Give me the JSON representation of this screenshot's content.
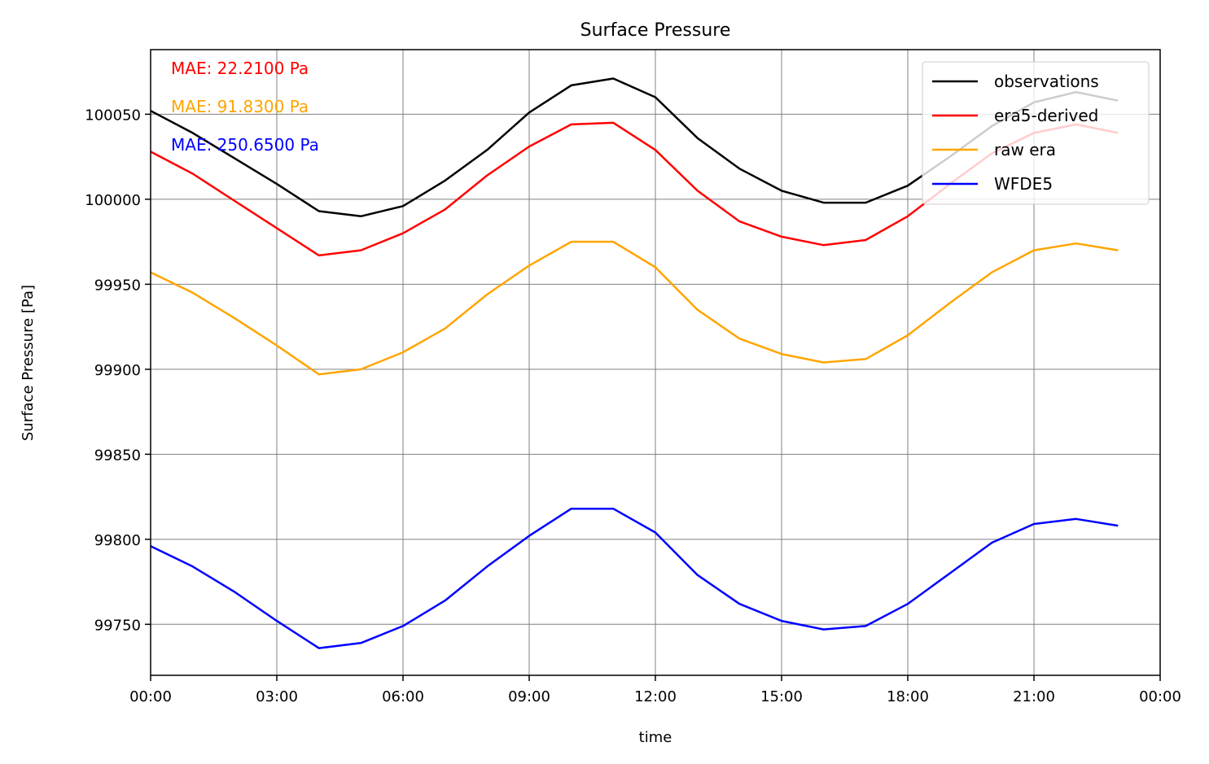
{
  "chart_data": {
    "type": "line",
    "title": "Surface Pressure",
    "xlabel": "time",
    "ylabel": "Surface Pressure [Pa]",
    "x": [
      "00:00",
      "01:00",
      "02:00",
      "03:00",
      "04:00",
      "05:00",
      "06:00",
      "07:00",
      "08:00",
      "09:00",
      "10:00",
      "11:00",
      "12:00",
      "13:00",
      "14:00",
      "15:00",
      "16:00",
      "17:00",
      "18:00",
      "19:00",
      "20:00",
      "21:00",
      "22:00",
      "23:00"
    ],
    "xlim": [
      "00:00",
      "00:00 (+1 day)"
    ],
    "x_ticks": [
      "00:00",
      "03:00",
      "06:00",
      "09:00",
      "12:00",
      "15:00",
      "18:00",
      "21:00",
      "00:00"
    ],
    "ylim": [
      99720,
      100088
    ],
    "y_ticks": [
      99750,
      99800,
      99850,
      99900,
      99950,
      100000,
      100050
    ],
    "grid": true,
    "legend": "top-right",
    "series": [
      {
        "name": "observations",
        "color": "#000000",
        "values": [
          100052,
          100039,
          100024,
          100009,
          99993,
          99990,
          99996,
          100011,
          100029,
          100051,
          100067,
          100071,
          100060,
          100036,
          100018,
          100005,
          99998,
          99998,
          100008,
          100025,
          100043,
          100057,
          100063,
          100058
        ]
      },
      {
        "name": "era5-derived",
        "color": "#ff0000",
        "values": [
          100028,
          100015,
          99999,
          99983,
          99967,
          99970,
          99980,
          99994,
          100014,
          100031,
          100044,
          100045,
          100029,
          100005,
          99987,
          99978,
          99973,
          99976,
          99990,
          100009,
          100027,
          100039,
          100044,
          100039
        ]
      },
      {
        "name": "raw era",
        "color": "#ffa500",
        "values": [
          99957,
          99945,
          99930,
          99914,
          99897,
          99900,
          99910,
          99924,
          99944,
          99961,
          99975,
          99975,
          99960,
          99935,
          99918,
          99909,
          99904,
          99906,
          99920,
          99939,
          99957,
          99970,
          99974,
          99970
        ]
      },
      {
        "name": "WFDE5",
        "color": "#0000ff",
        "values": [
          99796,
          99784,
          99769,
          99752,
          99736,
          99739,
          99749,
          99764,
          99784,
          99802,
          99818,
          99818,
          99804,
          99779,
          99762,
          99752,
          99747,
          99749,
          99762,
          99780,
          99798,
          99809,
          99812,
          99808
        ]
      }
    ],
    "annotations": [
      {
        "text": "MAE: 22.2100 Pa",
        "color": "#ff0000"
      },
      {
        "text": "MAE: 91.8300 Pa",
        "color": "#ffa500"
      },
      {
        "text": "MAE: 250.6500 Pa",
        "color": "#0000ff"
      }
    ]
  }
}
